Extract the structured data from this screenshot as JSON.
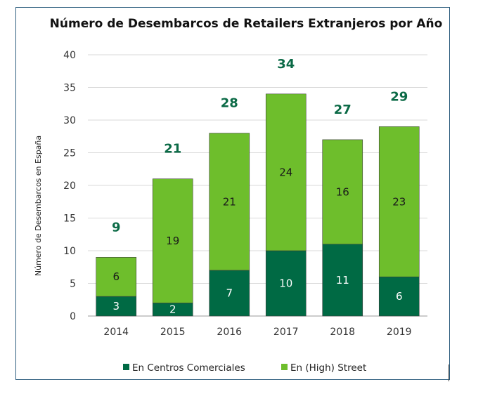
{
  "chart_data": {
    "type": "bar",
    "stacked": true,
    "title": "Número de Desembarcos de Retailers Extranjeros por Año",
    "ylabel": "Número de Desembarcos en España",
    "xlabel": "",
    "ylim": [
      0,
      40
    ],
    "yticks": [
      0,
      5,
      10,
      15,
      20,
      25,
      30,
      35,
      40
    ],
    "categories": [
      "2014",
      "2015",
      "2016",
      "2017",
      "2018",
      "2019"
    ],
    "series": [
      {
        "name": "En Centros Comerciales",
        "values": [
          3,
          2,
          7,
          10,
          11,
          6
        ],
        "color": "#006a44"
      },
      {
        "name": "En (High) Street",
        "values": [
          6,
          19,
          21,
          24,
          16,
          23
        ],
        "color": "#6ebe2c"
      }
    ],
    "totals": [
      9,
      21,
      28,
      34,
      27,
      29
    ],
    "total_label_color": "#0b6a46",
    "grid": true,
    "legend_position": "bottom"
  }
}
